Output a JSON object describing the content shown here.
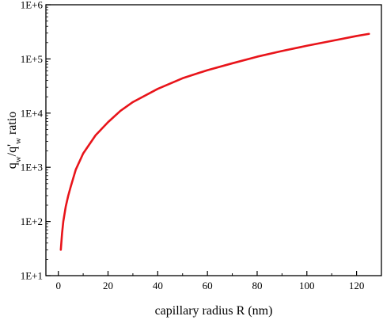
{
  "chart_data": {
    "type": "line",
    "title": "",
    "xlabel": "capillary radius R (nm)",
    "ylabel": {
      "q1": "q",
      "sub1": "w",
      "slash": "/q'",
      "sub2": "w",
      "rest": " ratio"
    },
    "xscale": "linear",
    "yscale": "log",
    "xlim": [
      -5,
      130
    ],
    "ylim": [
      10,
      1000000
    ],
    "xticks": [
      0,
      20,
      40,
      60,
      80,
      100,
      120
    ],
    "xtick_labels": [
      "0",
      "20",
      "40",
      "60",
      "80",
      "100",
      "120"
    ],
    "yticks": [
      10,
      100,
      1000,
      10000,
      100000,
      1000000
    ],
    "ytick_labels": [
      "1E+1",
      "1E+2",
      "1E+3",
      "1E+4",
      "1E+5",
      "1E+6"
    ],
    "grid": false,
    "legend": "none",
    "series": [
      {
        "color": "#e8141a",
        "x": [
          1,
          1.5,
          2,
          3,
          4,
          5,
          7,
          10,
          15,
          20,
          25,
          30,
          40,
          50,
          60,
          70,
          80,
          90,
          100,
          110,
          120,
          125
        ],
        "y": [
          30,
          60,
          100,
          190,
          300,
          440,
          900,
          1800,
          3900,
          6800,
          11000,
          16000,
          28000,
          44000,
          62000,
          83000,
          110000,
          140000,
          175000,
          215000,
          265000,
          290000
        ]
      }
    ]
  }
}
